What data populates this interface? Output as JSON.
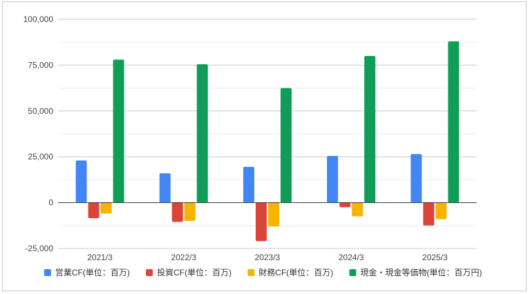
{
  "chart_data": {
    "type": "bar",
    "categories": [
      "2021/3",
      "2022/3",
      "2023/3",
      "2024/3",
      "2025/3"
    ],
    "series": [
      {
        "name": "営業CF(単位：百万)",
        "color": "#4285f4",
        "values": [
          23000,
          16000,
          19500,
          25500,
          26500
        ]
      },
      {
        "name": "投資CF(単位：百万)",
        "color": "#db4437",
        "values": [
          -8500,
          -10500,
          -21000,
          -2500,
          -12500
        ]
      },
      {
        "name": "財務CF(単位：百万)",
        "color": "#f4b400",
        "values": [
          -6000,
          -10000,
          -13000,
          -7500,
          -9000
        ]
      },
      {
        "name": "現金・現金等価物(単位：百万円)",
        "color": "#0f9d58",
        "values": [
          78000,
          75500,
          62500,
          80000,
          88000
        ]
      }
    ],
    "ylim": [
      -25000,
      100000
    ],
    "yticks": [
      {
        "value": 100000,
        "label": "100,000"
      },
      {
        "value": 75000,
        "label": "75,000"
      },
      {
        "value": 50000,
        "label": "50,000"
      },
      {
        "value": 25000,
        "label": "25,000"
      },
      {
        "value": 0,
        "label": "0"
      },
      {
        "value": -25000,
        "label": "-25,000"
      }
    ],
    "minor_gridlines": true,
    "legend_position": "bottom",
    "title": "",
    "xlabel": "",
    "ylabel": ""
  }
}
